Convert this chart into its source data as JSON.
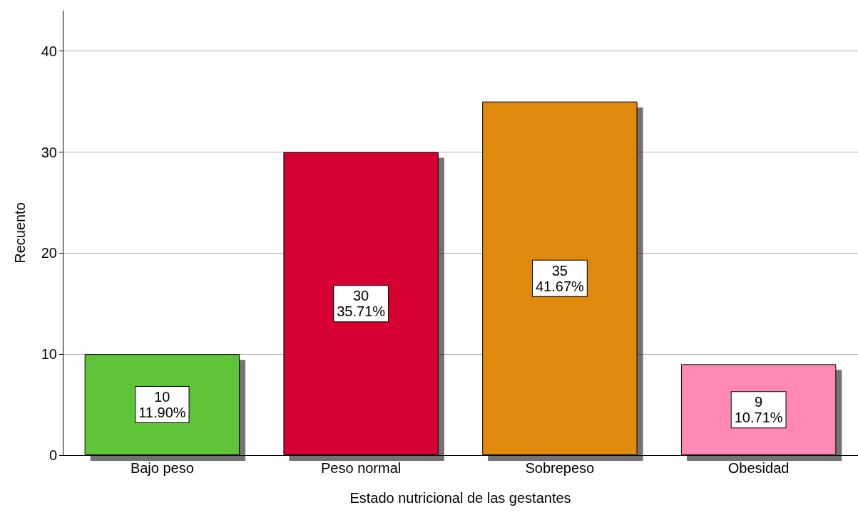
{
  "chart_data": {
    "type": "bar",
    "xlabel": "Estado nutricional de las gestantes",
    "ylabel": "Recuento",
    "categories": [
      "Bajo peso",
      "Peso normal",
      "Sobrepeso",
      "Obesidad"
    ],
    "values": [
      10,
      30,
      35,
      9
    ],
    "colors": [
      "#5ec438",
      "#d60032",
      "#e08a10",
      "#ff88b4"
    ],
    "value_labels": [
      "10\n11.90%",
      "30\n35.71%",
      "35\n41.67%",
      "9\n10.71%"
    ],
    "ylim": [
      0,
      44
    ],
    "yticks": [
      0,
      10,
      20,
      30,
      40
    ],
    "grid": "y"
  }
}
